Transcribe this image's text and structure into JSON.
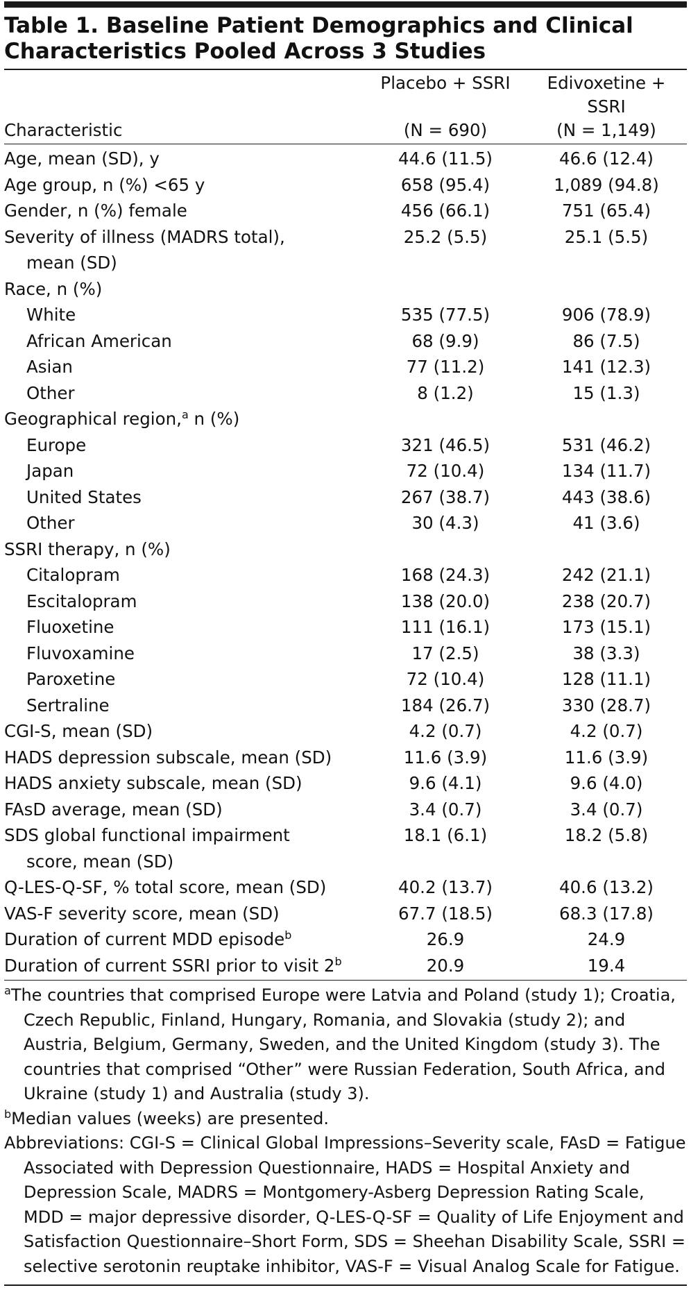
{
  "title": "Table 1. Baseline Patient Demographics and Clinical Characteristics Pooled Across 3 Studies",
  "columns": {
    "characteristic": "Characteristic",
    "placebo": [
      "Placebo + SSRI",
      "(N = 690)"
    ],
    "edivoxetine": [
      "Edivoxetine + SSRI",
      "(N = 1,149)"
    ]
  },
  "rows": [
    {
      "label": [
        "Age, mean (SD), y"
      ],
      "placebo": "44.6 (11.5)",
      "edivoxetine": "46.6 (12.4)"
    },
    {
      "label": [
        "Age group, n (%) <65 y"
      ],
      "placebo": "658 (95.4)",
      "edivoxetine": "1,089 (94.8)"
    },
    {
      "label": [
        "Gender, n (%) female"
      ],
      "placebo": "456 (66.1)",
      "edivoxetine": "751 (65.4)"
    },
    {
      "label": [
        "Severity of illness (MADRS total),",
        "mean (SD)"
      ],
      "placebo": "25.2 (5.5)",
      "edivoxetine": "25.1 (5.5)"
    },
    {
      "label": [
        "Race, n (%)"
      ],
      "items": [
        {
          "label": [
            "White"
          ],
          "placebo": "535 (77.5)",
          "edivoxetine": "906 (78.9)"
        },
        {
          "label": [
            "African American"
          ],
          "placebo": "68 (9.9)",
          "edivoxetine": "86 (7.5)"
        },
        {
          "label": [
            "Asian"
          ],
          "placebo": "77 (11.2)",
          "edivoxetine": "141 (12.3)"
        },
        {
          "label": [
            "Other"
          ],
          "placebo": "8 (1.2)",
          "edivoxetine": "15 (1.3)"
        }
      ]
    },
    {
      "label": [
        "Geographical region,"
      ],
      "sup": "a",
      "label_after": " n (%)",
      "items": [
        {
          "label": [
            "Europe"
          ],
          "placebo": "321 (46.5)",
          "edivoxetine": "531 (46.2)"
        },
        {
          "label": [
            "Japan"
          ],
          "placebo": "72 (10.4)",
          "edivoxetine": "134 (11.7)"
        },
        {
          "label": [
            "United States"
          ],
          "placebo": "267 (38.7)",
          "edivoxetine": "443 (38.6)"
        },
        {
          "label": [
            "Other"
          ],
          "placebo": "30 (4.3)",
          "edivoxetine": "41 (3.6)"
        }
      ]
    },
    {
      "label": [
        "SSRI therapy, n (%)"
      ],
      "items": [
        {
          "label": [
            "Citalopram"
          ],
          "placebo": "168 (24.3)",
          "edivoxetine": "242 (21.1)"
        },
        {
          "label": [
            "Escitalopram"
          ],
          "placebo": "138 (20.0)",
          "edivoxetine": "238 (20.7)"
        },
        {
          "label": [
            "Fluoxetine"
          ],
          "placebo": "111 (16.1)",
          "edivoxetine": "173 (15.1)"
        },
        {
          "label": [
            "Fluvoxamine"
          ],
          "placebo": "17 (2.5)",
          "edivoxetine": "38 (3.3)"
        },
        {
          "label": [
            "Paroxetine"
          ],
          "placebo": "72 (10.4)",
          "edivoxetine": "128 (11.1)"
        },
        {
          "label": [
            "Sertraline"
          ],
          "placebo": "184 (26.7)",
          "edivoxetine": "330 (28.7)"
        }
      ]
    },
    {
      "label": [
        "CGI-S, mean (SD)"
      ],
      "placebo": "4.2 (0.7)",
      "edivoxetine": "4.2 (0.7)"
    },
    {
      "label": [
        "HADS depression subscale, mean (SD)"
      ],
      "placebo": "11.6 (3.9)",
      "edivoxetine": "11.6 (3.9)"
    },
    {
      "label": [
        "HADS anxiety subscale, mean (SD)"
      ],
      "placebo": "9.6 (4.1)",
      "edivoxetine": "9.6 (4.0)"
    },
    {
      "label": [
        "FAsD average, mean (SD)"
      ],
      "placebo": "3.4 (0.7)",
      "edivoxetine": "3.4 (0.7)"
    },
    {
      "label": [
        "SDS global functional impairment",
        "score, mean (SD)"
      ],
      "placebo": "18.1 (6.1)",
      "edivoxetine": "18.2 (5.8)"
    },
    {
      "label": [
        "Q-LES-Q-SF, % total score, mean (SD)"
      ],
      "placebo": "40.2 (13.7)",
      "edivoxetine": "40.6 (13.2)"
    },
    {
      "label": [
        "VAS-F severity score, mean (SD)"
      ],
      "placebo": "67.7 (18.5)",
      "edivoxetine": "68.3 (17.8)"
    },
    {
      "label": [
        "Duration of current MDD episode"
      ],
      "sup": "b",
      "placebo": "26.9",
      "edivoxetine": "24.9"
    },
    {
      "label": [
        "Duration of current SSRI prior to visit 2"
      ],
      "sup": "b",
      "placebo": "20.9",
      "edivoxetine": "19.4"
    }
  ],
  "notes": [
    {
      "sup": "a",
      "text": "The countries that comprised Europe were Latvia and Poland (study 1); Croatia, Czech Republic, Finland, Hungary, Romania, and Slovakia (study 2); and Austria, Belgium, Germany, Sweden, and the United Kingdom (study 3). The countries that comprised “Other” were Russian Federation, South Africa, and Ukraine (study 1) and Australia (study 3)."
    },
    {
      "sup": "b",
      "text": "Median values (weeks) are presented."
    },
    {
      "text": "Abbreviations: CGI-S = Clinical Global Impressions–Severity scale, FAsD = Fatigue Associated with Depression Questionnaire, HADS = Hospital Anxiety and Depression Scale, MADRS = Montgomery-Asberg Depression Rating Scale, MDD = major depressive disorder, Q-LES-Q-SF = Quality of Life Enjoyment and Satisfaction Questionnaire–Short Form, SDS = Sheehan Disability Scale, SSRI = selective serotonin reuptake inhibitor, VAS-F = Visual Analog Scale for Fatigue."
    }
  ]
}
